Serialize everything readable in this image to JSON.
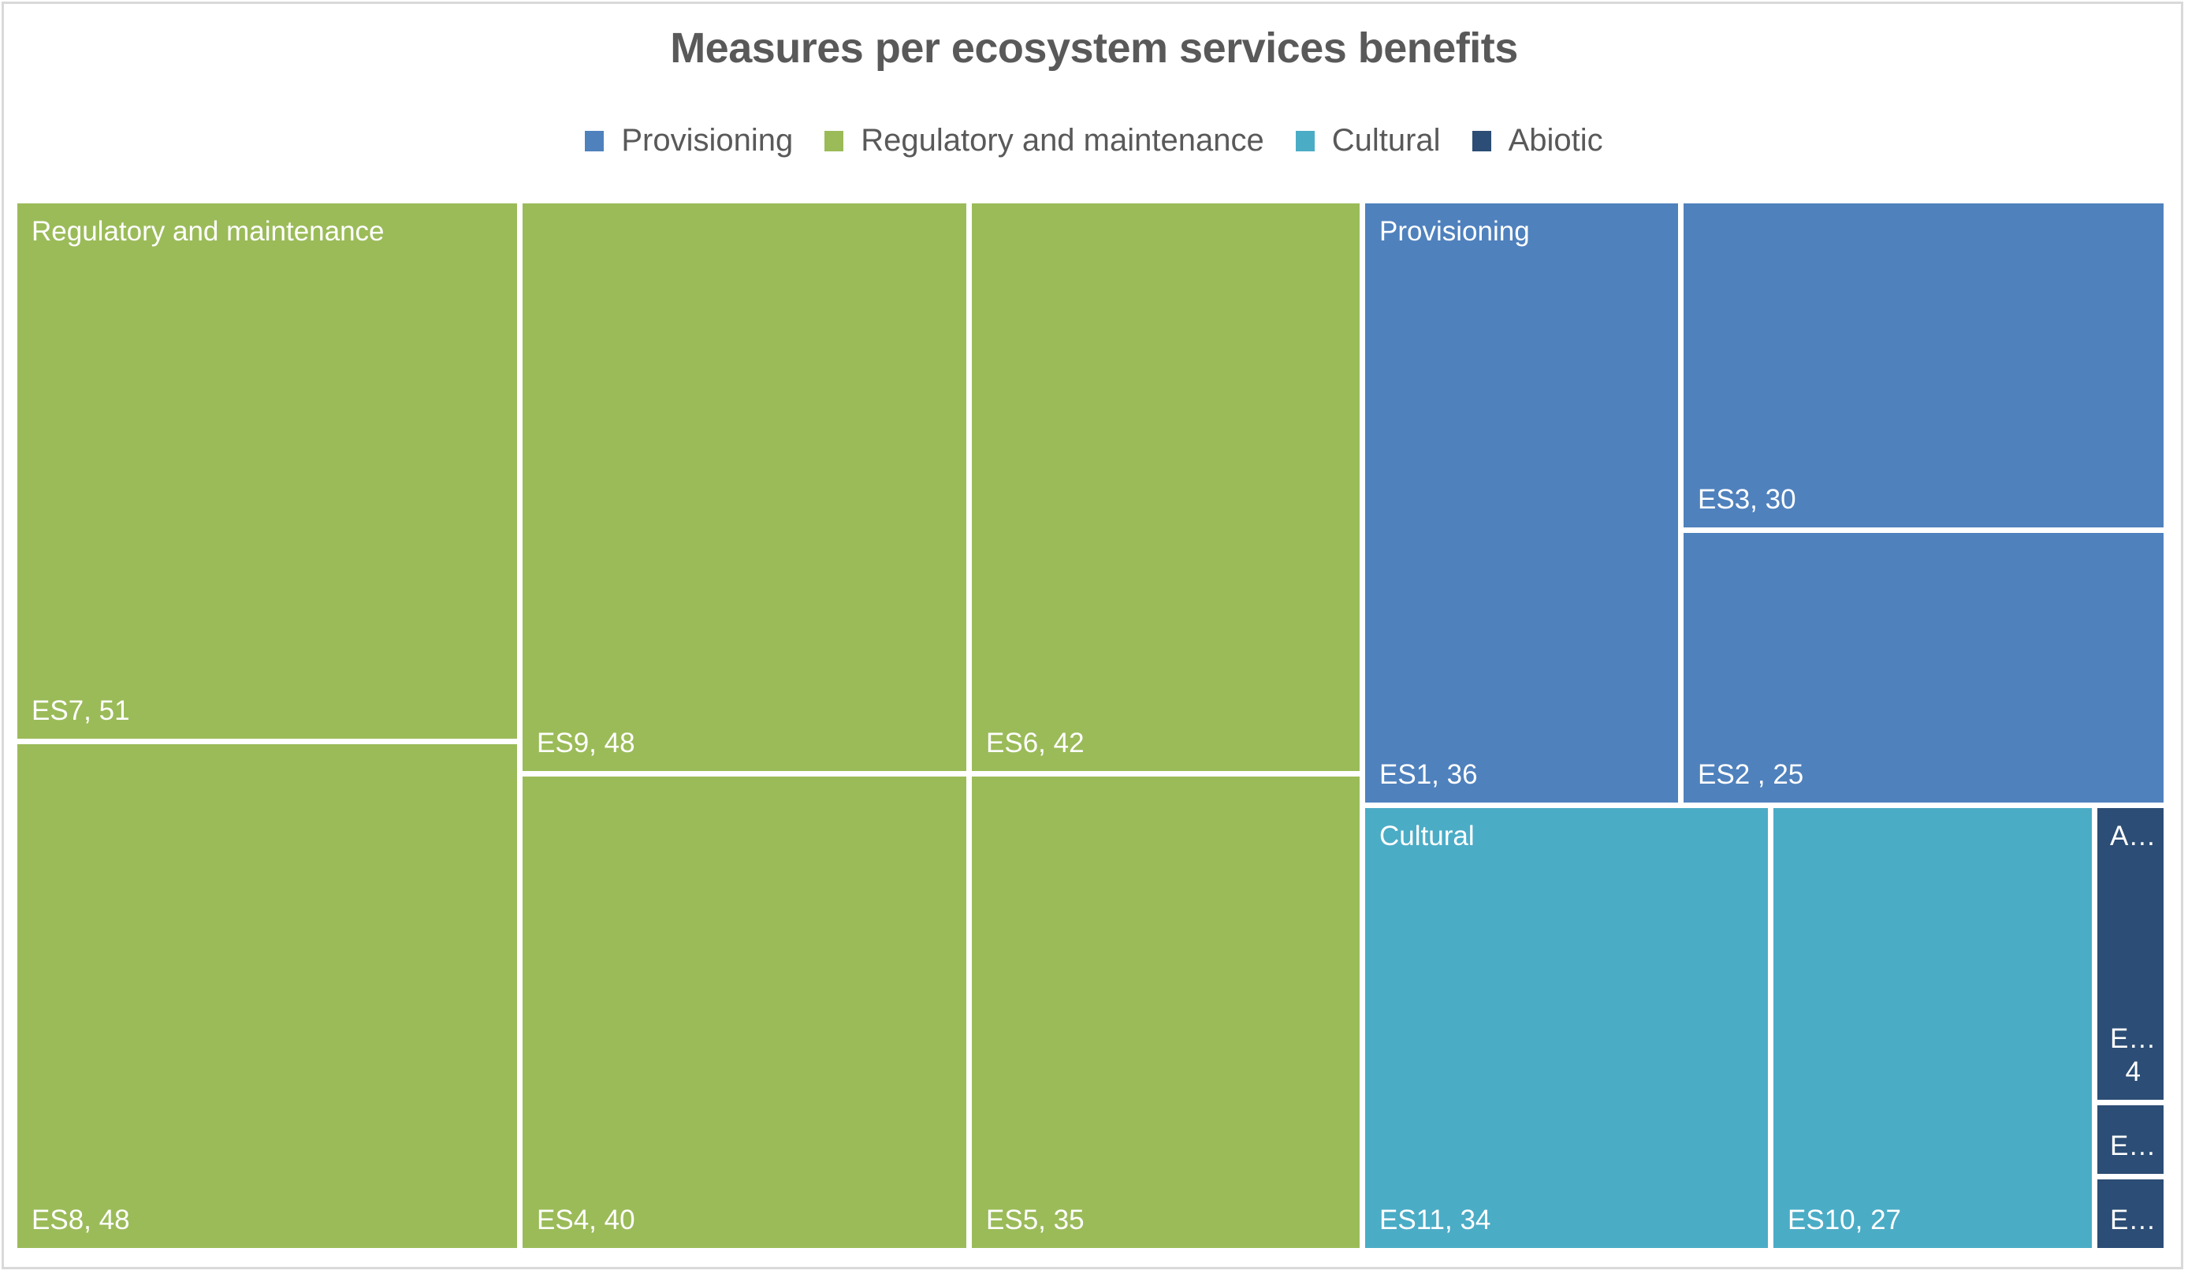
{
  "chart_data": {
    "type": "treemap",
    "title": "Measures per ecosystem services benefits",
    "legend": {
      "placement": "top",
      "entries": [
        {
          "name": "Provisioning",
          "color": "#4f81bd"
        },
        {
          "name": "Regulatory and maintenance",
          "color": "#9bbb59"
        },
        {
          "name": "Cultural",
          "color": "#4bacc6"
        },
        {
          "name": "Abiotic",
          "color": "#2c4d75"
        }
      ]
    },
    "groups": [
      {
        "name": "Regulatory and maintenance",
        "header_label": "Regulatory and maintenance",
        "color": "#9bbb59",
        "items": [
          {
            "name": "ES7",
            "value": 51,
            "label": "ES7, 51"
          },
          {
            "name": "ES8",
            "value": 48,
            "label": "ES8, 48"
          },
          {
            "name": "ES9",
            "value": 48,
            "label": "ES9, 48"
          },
          {
            "name": "ES4",
            "value": 40,
            "label": "ES4, 40"
          },
          {
            "name": "ES6",
            "value": 42,
            "label": "ES6, 42"
          },
          {
            "name": "ES5",
            "value": 35,
            "label": "ES5, 35"
          }
        ]
      },
      {
        "name": "Provisioning",
        "header_label": "Provisioning",
        "color": "#4f81bd",
        "items": [
          {
            "name": "ES1",
            "value": 36,
            "label": "ES1, 36"
          },
          {
            "name": "ES3",
            "value": 30,
            "label": "ES3, 30"
          },
          {
            "name": "ES2",
            "value": 25,
            "label": "ES2 , 25"
          }
        ]
      },
      {
        "name": "Cultural",
        "header_label": "Cultural",
        "color": "#4bacc6",
        "items": [
          {
            "name": "ES11",
            "value": 34,
            "label": "ES11, 34"
          },
          {
            "name": "ES10",
            "value": 27,
            "label": "ES10, 27"
          }
        ]
      },
      {
        "name": "Abiotic",
        "header_label": "A…",
        "color": "#2c4d75",
        "items": [
          {
            "name": "E…",
            "value": 4,
            "label": "E…\n4"
          },
          {
            "name": "E…",
            "value": 1,
            "label": "E…"
          },
          {
            "name": "E…",
            "value": 1,
            "label": "E…"
          }
        ]
      }
    ]
  }
}
